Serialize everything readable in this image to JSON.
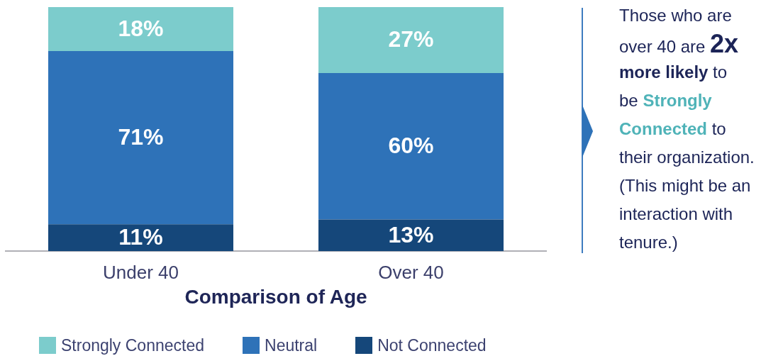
{
  "chart_data": {
    "type": "bar",
    "stacked": true,
    "categories": [
      "Under 40",
      "Over 40"
    ],
    "series": [
      {
        "name": "Not Connected",
        "color": "#15477a",
        "values": [
          11,
          13
        ],
        "value_labels": [
          "11%",
          "13%"
        ]
      },
      {
        "name": "Neutral",
        "color": "#2e72b8",
        "values": [
          71,
          60
        ],
        "value_labels": [
          "71%",
          "60%"
        ]
      },
      {
        "name": "Strongly Connected",
        "color": "#7ccccc",
        "values": [
          18,
          27
        ],
        "value_labels": [
          "18%",
          "27%"
        ]
      }
    ],
    "xlabel": "Comparison of Age",
    "ylim": [
      0,
      100
    ],
    "tick_labels": "x",
    "legend": "bottom",
    "annotations": [
      "Those who are over 40 are 2x more likely to be Strongly Connected to their organization. (This might be an interaction with tenure.)"
    ]
  }
}
